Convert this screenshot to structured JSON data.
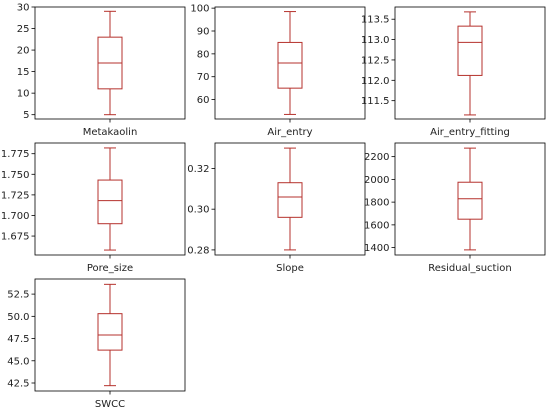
{
  "chart_data": [
    {
      "type": "box",
      "category": "Metakaolin",
      "min": 5,
      "q1": 11,
      "median": 17,
      "q3": 23,
      "max": 29,
      "ylim": [
        4,
        30
      ],
      "yticks": [
        5,
        10,
        15,
        20,
        25,
        30
      ],
      "ytick_labels": [
        "5",
        "10",
        "15",
        "20",
        "25",
        "30"
      ]
    },
    {
      "type": "box",
      "category": "Air_entry",
      "min": 53.5,
      "q1": 65,
      "median": 76,
      "q3": 85,
      "max": 98.5,
      "ylim": [
        51.5,
        100.5
      ],
      "yticks": [
        60,
        70,
        80,
        90,
        100
      ],
      "ytick_labels": [
        "60",
        "70",
        "80",
        "90",
        "100"
      ]
    },
    {
      "type": "box",
      "category": "Air_entry_fitting",
      "min": 111.15,
      "q1": 112.12,
      "median": 112.93,
      "q3": 113.33,
      "max": 113.68,
      "ylim": [
        111.05,
        113.8
      ],
      "yticks": [
        111.5,
        112.0,
        112.5,
        113.0,
        113.5
      ],
      "ytick_labels": [
        "111.5",
        "112.0",
        "112.5",
        "113.0",
        "113.5"
      ]
    },
    {
      "type": "box",
      "category": "Pore_size",
      "min": 1.658,
      "q1": 1.69,
      "median": 1.718,
      "q3": 1.743,
      "max": 1.782,
      "ylim": [
        1.652,
        1.788
      ],
      "yticks": [
        1.675,
        1.7,
        1.725,
        1.75,
        1.775
      ],
      "ytick_labels": [
        "1.675",
        "1.700",
        "1.725",
        "1.750",
        "1.775"
      ]
    },
    {
      "type": "box",
      "category": "Slope",
      "min": 0.28,
      "q1": 0.296,
      "median": 0.306,
      "q3": 0.313,
      "max": 0.33,
      "ylim": [
        0.2775,
        0.3325
      ],
      "yticks": [
        0.28,
        0.3,
        0.32
      ],
      "ytick_labels": [
        "0.28",
        "0.30",
        "0.32"
      ]
    },
    {
      "type": "box",
      "category": "Residual_suction",
      "min": 1380,
      "q1": 1650,
      "median": 1830,
      "q3": 1975,
      "max": 2275,
      "ylim": [
        1335,
        2320
      ],
      "yticks": [
        1400,
        1600,
        1800,
        2000,
        2200
      ],
      "ytick_labels": [
        "1400",
        "1600",
        "1800",
        "2000",
        "2200"
      ]
    },
    {
      "type": "box",
      "category": "SWCC",
      "min": 42.2,
      "q1": 46.2,
      "median": 47.9,
      "q3": 50.3,
      "max": 53.6,
      "ylim": [
        41.6,
        54.2
      ],
      "yticks": [
        42.5,
        45.0,
        47.5,
        50.0,
        52.5
      ],
      "ytick_labels": [
        "42.5",
        "45.0",
        "47.5",
        "50.0",
        "52.5"
      ]
    }
  ],
  "style": {
    "box_color": "#b5312c",
    "axis_color": "#000000",
    "grid": false
  }
}
